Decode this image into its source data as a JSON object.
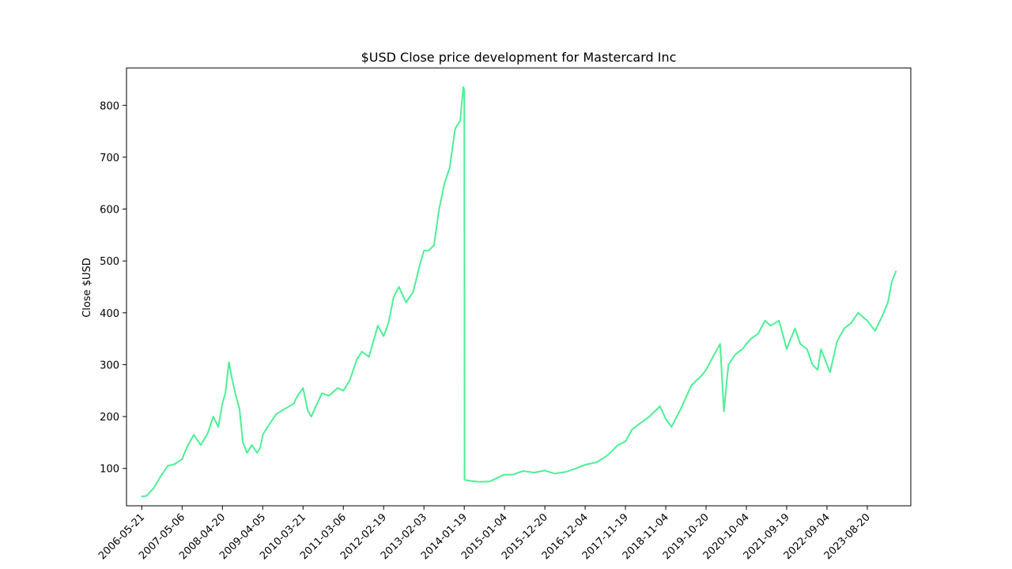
{
  "chart_data": {
    "type": "line",
    "title": "$USD Close price development for Mastercard Inc",
    "xlabel": "",
    "ylabel": "Close $USD",
    "ylim": [
      28,
      872
    ],
    "xlim": [
      "2006-01-08",
      "2024-09-01"
    ],
    "yticks": [
      100,
      200,
      300,
      400,
      500,
      600,
      700,
      800
    ],
    "xticks": [
      "2006-05-21",
      "2007-05-06",
      "2008-04-20",
      "2009-04-05",
      "2010-03-21",
      "2011-03-06",
      "2012-02-19",
      "2013-02-03",
      "2014-01-19",
      "2015-01-04",
      "2015-12-20",
      "2016-12-04",
      "2017-11-19",
      "2018-11-04",
      "2019-10-20",
      "2020-10-04",
      "2021-09-19",
      "2022-09-04",
      "2023-08-20"
    ],
    "grid": false,
    "line_color": "#4cf095",
    "series": [
      {
        "x": [
          "2006-05-21",
          "2006-07-01",
          "2006-09-01",
          "2006-11-01",
          "2007-01-01",
          "2007-03-01",
          "2007-05-06",
          "2007-06-15",
          "2007-08-15",
          "2007-10-15",
          "2007-12-15",
          "2008-02-01",
          "2008-03-15",
          "2008-04-20",
          "2008-05-15",
          "2008-06-15",
          "2008-07-15",
          "2008-08-15",
          "2008-09-15",
          "2008-10-15",
          "2008-11-20",
          "2008-12-31",
          "2009-02-15",
          "2009-03-15",
          "2009-04-05",
          "2009-06-01",
          "2009-08-01",
          "2009-10-15",
          "2009-12-31",
          "2010-02-01",
          "2010-03-21",
          "2010-05-01",
          "2010-06-01",
          "2010-07-01",
          "2010-09-01",
          "2010-11-01",
          "2011-01-15",
          "2011-03-06",
          "2011-05-01",
          "2011-07-01",
          "2011-08-15",
          "2011-10-15",
          "2011-12-31",
          "2012-02-19",
          "2012-04-01",
          "2012-05-15",
          "2012-07-01",
          "2012-09-01",
          "2012-11-01",
          "2013-01-01",
          "2013-02-03",
          "2013-03-15",
          "2013-05-01",
          "2013-06-15",
          "2013-08-01",
          "2013-09-15",
          "2013-11-01",
          "2013-12-15",
          "2014-01-10",
          "2014-01-19",
          "2014-01-22",
          "2014-03-15",
          "2014-06-01",
          "2014-09-01",
          "2014-12-01",
          "2015-01-04",
          "2015-03-15",
          "2015-06-15",
          "2015-09-15",
          "2015-12-20",
          "2016-03-15",
          "2016-06-15",
          "2016-09-15",
          "2016-12-04",
          "2017-03-15",
          "2017-06-15",
          "2017-09-15",
          "2017-11-19",
          "2018-01-15",
          "2018-03-15",
          "2018-06-15",
          "2018-09-15",
          "2018-11-04",
          "2018-12-24",
          "2019-03-15",
          "2019-06-15",
          "2019-09-15",
          "2019-10-20",
          "2019-12-31",
          "2020-02-19",
          "2020-03-23",
          "2020-05-01",
          "2020-07-01",
          "2020-08-31",
          "2020-10-04",
          "2020-11-15",
          "2021-01-15",
          "2021-03-15",
          "2021-05-01",
          "2021-07-15",
          "2021-09-19",
          "2021-10-15",
          "2021-12-01",
          "2022-01-15",
          "2022-03-15",
          "2022-05-01",
          "2022-06-15",
          "2022-07-15",
          "2022-09-04",
          "2022-09-30",
          "2022-12-01",
          "2023-02-01",
          "2023-04-01",
          "2023-06-01",
          "2023-08-20",
          "2023-10-27",
          "2023-12-31",
          "2024-02-15",
          "2024-03-20",
          "2024-04-25"
        ],
        "y": [
          46,
          47,
          62,
          85,
          105,
          108,
          118,
          140,
          165,
          145,
          168,
          200,
          180,
          225,
          245,
          305,
          270,
          240,
          215,
          150,
          130,
          145,
          130,
          140,
          165,
          185,
          205,
          215,
          225,
          240,
          255,
          212,
          200,
          215,
          245,
          240,
          255,
          250,
          270,
          310,
          325,
          315,
          375,
          355,
          380,
          430,
          450,
          420,
          440,
          495,
          520,
          520,
          530,
          600,
          650,
          680,
          755,
          770,
          835,
          830,
          78,
          76,
          74,
          75,
          85,
          88,
          88,
          95,
          92,
          96,
          90,
          93,
          100,
          107,
          112,
          125,
          145,
          152,
          175,
          185,
          200,
          220,
          195,
          180,
          215,
          260,
          280,
          290,
          320,
          340,
          210,
          300,
          320,
          330,
          340,
          350,
          360,
          385,
          375,
          385,
          330,
          345,
          370,
          340,
          330,
          300,
          290,
          330,
          300,
          285,
          345,
          370,
          380,
          400,
          385,
          365,
          395,
          420,
          460,
          480
        ]
      }
    ]
  }
}
